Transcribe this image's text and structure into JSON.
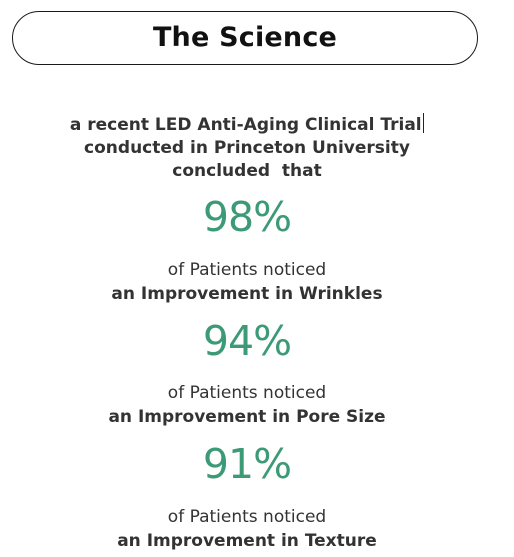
{
  "header": {
    "title": "The Science"
  },
  "intro": {
    "line1": "a recent LED Anti-Aging Clinical Trial",
    "line2": "conducted in Princeton University",
    "line3": "concluded  that"
  },
  "stats": [
    {
      "value": "98%",
      "lead": "of Patients noticed",
      "result": "an Improvement in Wrinkles"
    },
    {
      "value": "94%",
      "lead": "of Patients noticed",
      "result": "an Improvement in Pore Size"
    },
    {
      "value": "91%",
      "lead": "of Patients noticed",
      "result": "an Improvement in Texture"
    }
  ],
  "colors": {
    "accent": "#3c9a76",
    "text": "#333333",
    "title": "#111111",
    "border": "#1a1a1a"
  }
}
